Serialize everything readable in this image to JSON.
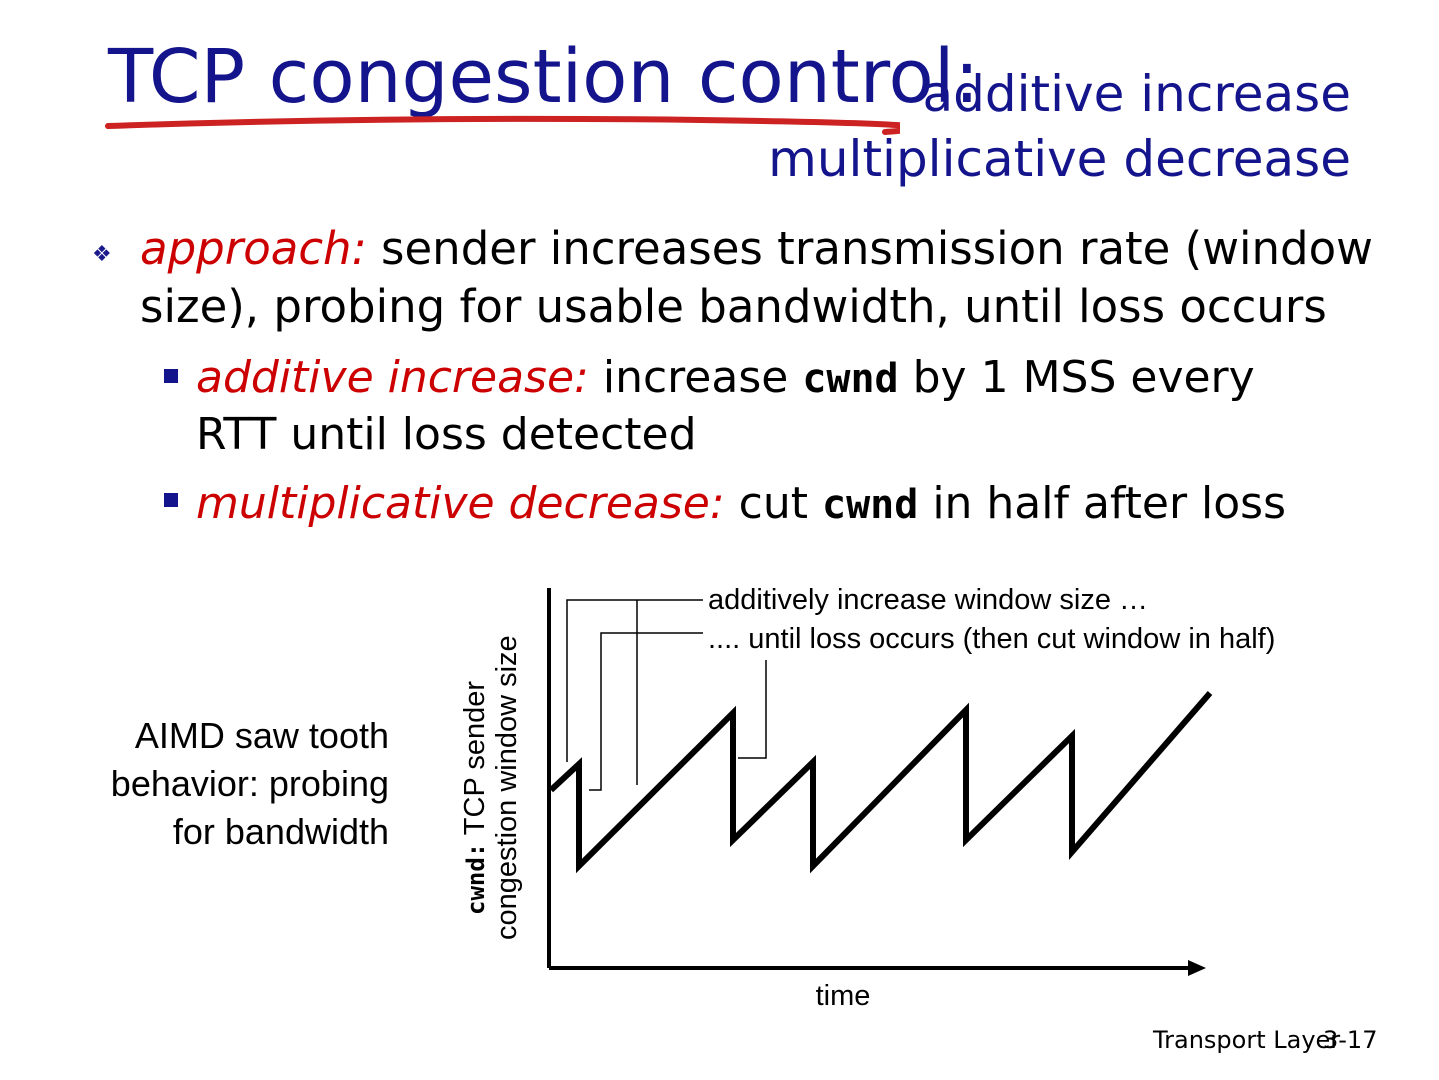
{
  "title": {
    "main": "TCP congestion control:",
    "sub_line1": "additive increase",
    "sub_line2": "multiplicative decrease"
  },
  "bullets": {
    "approach": {
      "label": "approach:",
      "text_line1": " sender increases transmission rate (window",
      "text_line2": "size), probing for usable bandwidth, until loss occurs"
    },
    "additive": {
      "label": "additive increase:",
      "text_pre": " increase ",
      "code": "cwnd",
      "text_post": " by 1 MSS every",
      "text_line2": "RTT until loss detected"
    },
    "multiplicative": {
      "label": "multiplicative decrease:",
      "text_pre": " cut ",
      "code": "cwnd",
      "text_post": " in half after loss"
    }
  },
  "side_note": {
    "line1": "AIMD saw tooth",
    "line2": "behavior: probing",
    "line3": "for bandwidth"
  },
  "diagram": {
    "annotation1": "additively increase window size …",
    "annotation2": ".... until loss occurs (then cut window in half)",
    "ylabel_code": "cwnd:",
    "ylabel_line1": " TCP sender",
    "ylabel_line2": "congestion window size",
    "xlabel": "time",
    "accent_color": "#cc2222",
    "title_color": "#14148c"
  },
  "footer": {
    "label": "Transport Layer",
    "page": "3-17"
  }
}
